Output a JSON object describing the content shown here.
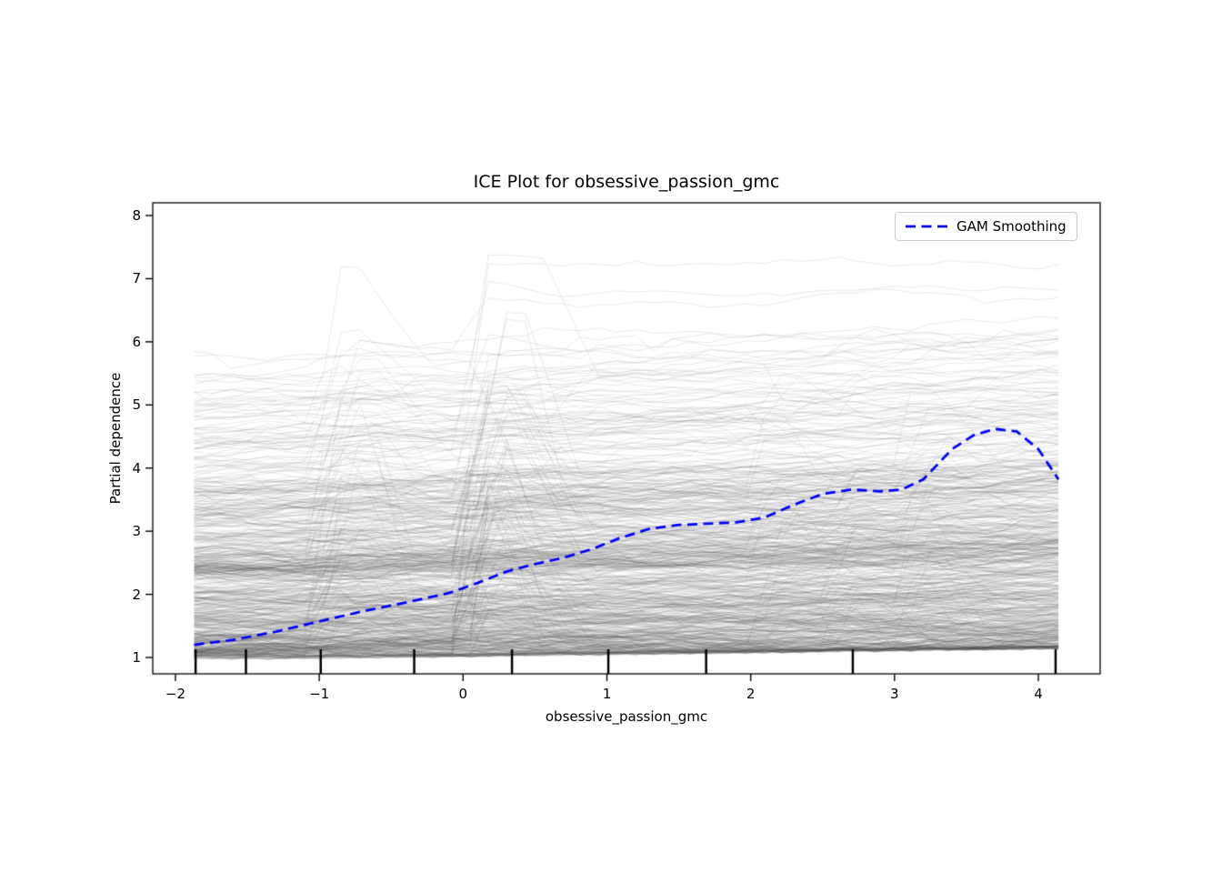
{
  "figure": {
    "background": "#ffffff"
  },
  "chart_data": {
    "type": "line",
    "variant": "ICE-plot",
    "title": "ICE Plot for obsessive_passion_gmc",
    "xlabel": "obsessive_passion_gmc",
    "ylabel": "Partial dependence",
    "xlim": [
      -2.158,
      4.43
    ],
    "ylim": [
      0.741,
      8.202
    ],
    "grid": false,
    "xticks": {
      "values": [
        -2,
        -1,
        0,
        1,
        2,
        3,
        4
      ],
      "labels": [
        "−2",
        "−1",
        "0",
        "1",
        "2",
        "3",
        "4"
      ]
    },
    "yticks": {
      "values": [
        1,
        2,
        3,
        4,
        5,
        6,
        7,
        8
      ],
      "labels": [
        "1",
        "2",
        "3",
        "4",
        "5",
        "6",
        "7",
        "8"
      ]
    },
    "legend": {
      "label": "GAM Smoothing",
      "color": "#0000ff",
      "line_style": "dashed",
      "position": "upper right"
    },
    "gam_curve": {
      "x": [
        -1.87,
        -1.6,
        -1.3,
        -1.0,
        -0.7,
        -0.4,
        -0.1,
        0.1,
        0.3,
        0.5,
        0.7,
        0.9,
        1.1,
        1.3,
        1.5,
        1.7,
        1.9,
        2.1,
        2.3,
        2.5,
        2.7,
        2.9,
        3.05,
        3.2,
        3.4,
        3.55,
        3.7,
        3.85,
        4.0,
        4.14
      ],
      "y": [
        1.2,
        1.28,
        1.41,
        1.57,
        1.73,
        1.87,
        2.02,
        2.18,
        2.36,
        2.48,
        2.58,
        2.72,
        2.9,
        3.04,
        3.1,
        3.12,
        3.14,
        3.22,
        3.42,
        3.59,
        3.66,
        3.63,
        3.66,
        3.82,
        4.3,
        4.52,
        4.62,
        4.58,
        4.3,
        3.82
      ]
    },
    "decile_rug_x": [
      -1.86,
      -1.51,
      -0.99,
      -0.34,
      0.34,
      1.01,
      1.69,
      2.71,
      4.12
    ],
    "ice_lines": {
      "count": 700,
      "color_rgb": [
        80,
        80,
        80
      ],
      "opacity": 0.12,
      "line_width": 1,
      "x_start": -1.87,
      "x_end": 4.14,
      "grid_points": 48,
      "y_floor": 1.0,
      "y_ceiling": 7.38,
      "jump_points_x": [
        -0.95,
        0.08,
        2.1,
        2.65,
        3.1
      ],
      "jump_probs": [
        0.13,
        0.17,
        0.07,
        0.06,
        0.05
      ],
      "jump_max_magnitude": [
        2.2,
        3.0,
        1.2,
        1.0,
        1.6
      ],
      "seed": 1337
    }
  }
}
